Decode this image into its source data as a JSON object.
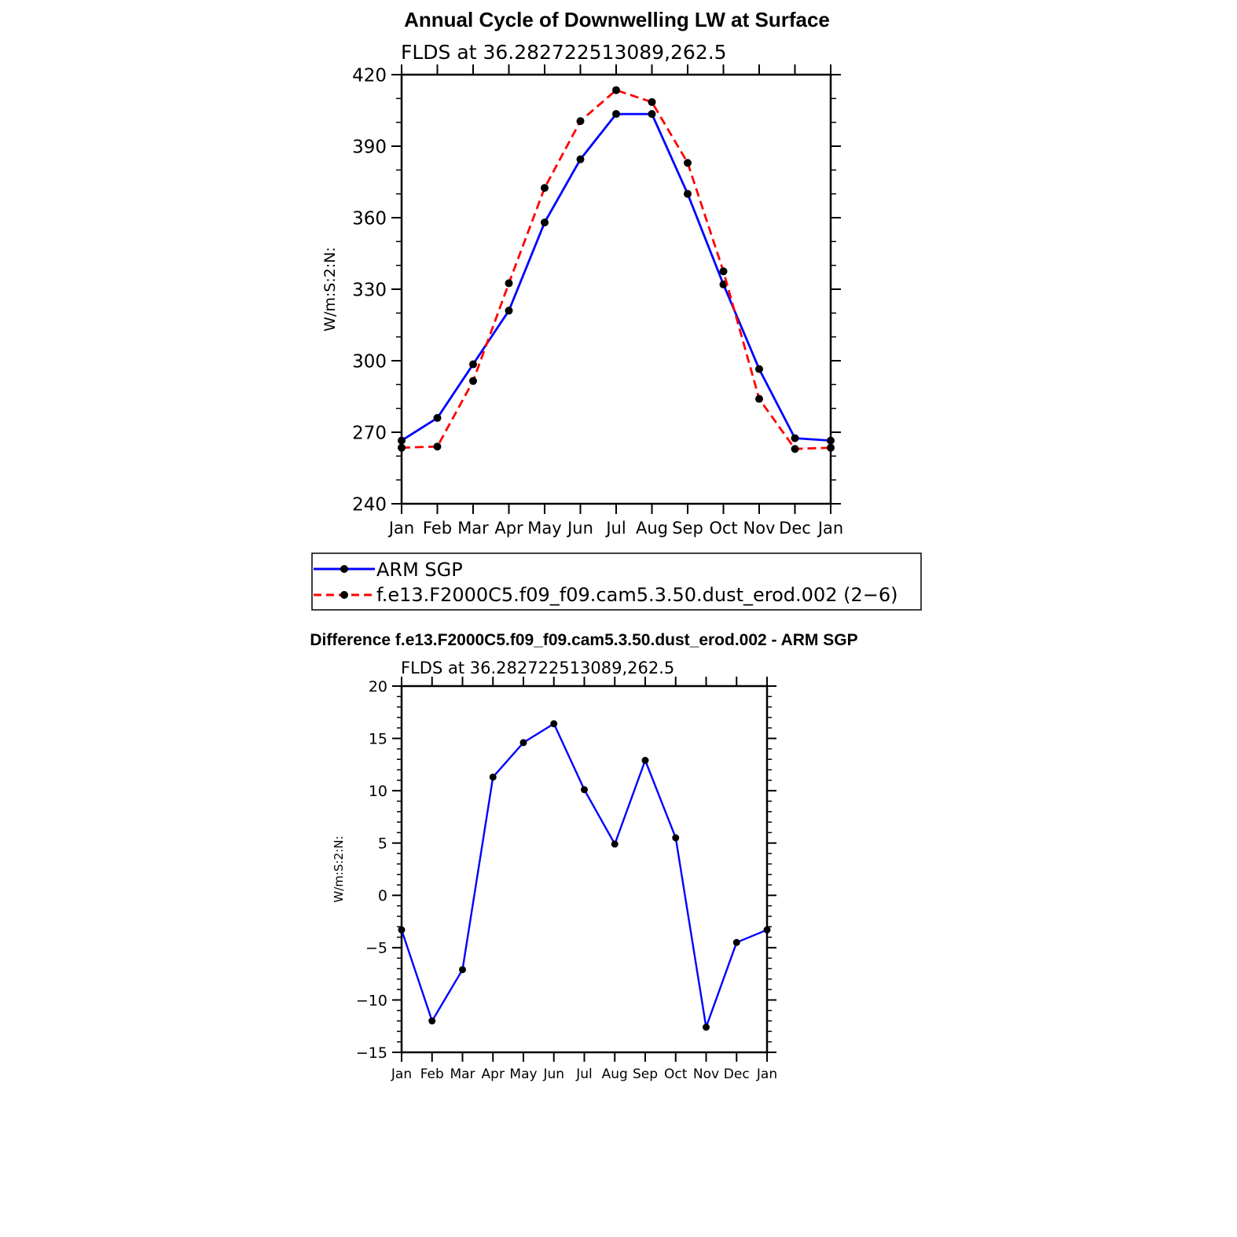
{
  "chart_data": [
    {
      "type": "line",
      "title": "Annual Cycle of Downwelling LW at Surface",
      "subtitle": "FLDS  at  36.282722513089,262.5",
      "ylabel": "W/m:S:2:N:",
      "xlabel": "",
      "categories": [
        "Jan",
        "Feb",
        "Mar",
        "Apr",
        "May",
        "Jun",
        "Jul",
        "Aug",
        "Sep",
        "Oct",
        "Nov",
        "Dec",
        "Jan"
      ],
      "yticks": [
        240,
        270,
        300,
        330,
        360,
        390,
        420
      ],
      "ylim": [
        240,
        420
      ],
      "grid": false,
      "legend_position": "below",
      "series": [
        {
          "name": "ARM SGP",
          "color": "#0000ff",
          "style": "solid",
          "values": [
            266.5,
            276.0,
            298.5,
            321.0,
            358.0,
            384.5,
            403.5,
            403.5,
            370.0,
            332.0,
            296.5,
            267.5,
            266.5
          ]
        },
        {
          "name": "f.e13.F2000C5.f09_f09.cam5.3.50.dust_erod.002 (2−6)",
          "color": "#ff0000",
          "style": "dashed",
          "values": [
            263.5,
            264.0,
            291.5,
            332.5,
            372.5,
            400.5,
            413.5,
            408.5,
            383.0,
            337.5,
            284.0,
            263.0,
            263.5
          ]
        }
      ]
    },
    {
      "type": "line",
      "title": "Difference f.e13.F2000C5.f09_f09.cam5.3.50.dust_erod.002 - ARM SGP",
      "subtitle": "FLDS  at  36.282722513089,262.5",
      "ylabel": "W/m:S:2:N:",
      "xlabel": "",
      "categories": [
        "Jan",
        "Feb",
        "Mar",
        "Apr",
        "May",
        "Jun",
        "Jul",
        "Aug",
        "Sep",
        "Oct",
        "Nov",
        "Dec",
        "Jan"
      ],
      "yticks": [
        -15,
        -10,
        -5,
        0,
        5,
        10,
        15,
        20
      ],
      "ytick_labels": [
        "−15",
        "−10",
        "−5",
        "0",
        "5",
        "10",
        "15",
        "20"
      ],
      "ylim": [
        -15,
        20
      ],
      "grid": false,
      "series": [
        {
          "color": "#0000ff",
          "style": "solid",
          "values": [
            -3.3,
            -12.0,
            -7.1,
            11.3,
            14.6,
            16.4,
            10.1,
            4.9,
            12.9,
            5.5,
            -12.6,
            -4.5,
            -3.3
          ]
        }
      ]
    }
  ]
}
